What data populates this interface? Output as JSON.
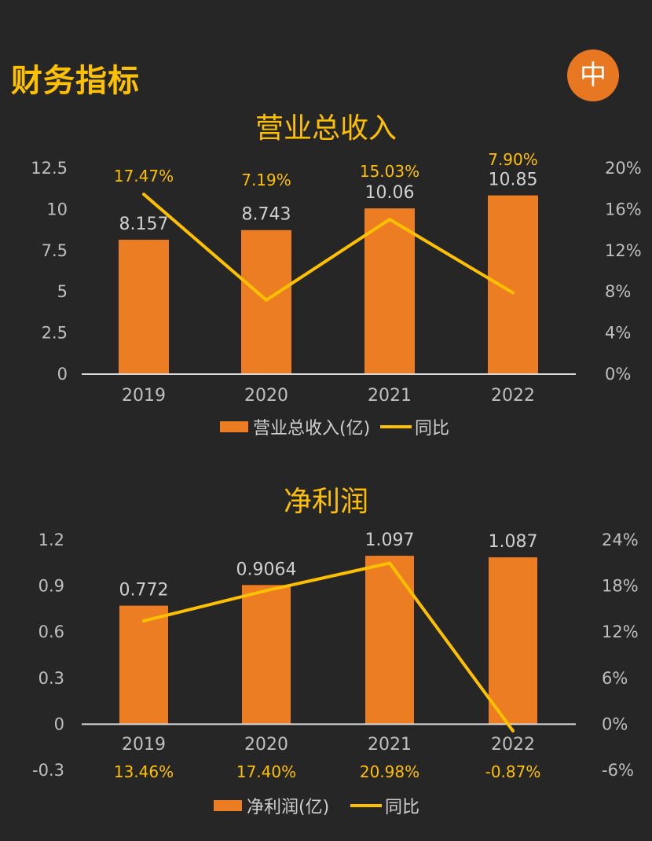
{
  "header": {
    "title": "财务指标",
    "badge": "中"
  },
  "colors": {
    "bar": "#ED7D22",
    "line": "#FFC000",
    "background": "#262626",
    "text": "#bfbfbf"
  },
  "chart_data": [
    {
      "type": "bar",
      "title": "营业总收入",
      "categories": [
        "2019",
        "2020",
        "2021",
        "2022"
      ],
      "series": [
        {
          "name": "营业总收入(亿)",
          "axis": "left",
          "values": [
            8.157,
            8.743,
            10.06,
            10.85
          ],
          "labels": [
            "8.157",
            "8.743",
            "10.06",
            "10.85"
          ]
        },
        {
          "name": "同比",
          "axis": "right",
          "kind": "line",
          "values": [
            17.47,
            7.19,
            15.03,
            7.9
          ],
          "labels": [
            "17.47%",
            "7.19%",
            "15.03%",
            "7.90%"
          ]
        }
      ],
      "ylim": [
        0,
        12.5
      ],
      "yticks": [
        "12.5",
        "10",
        "7.5",
        "5",
        "2.5",
        "0"
      ],
      "ylim_right": [
        0,
        20
      ],
      "yticks_right": [
        "20%",
        "16%",
        "12%",
        "8%",
        "4%",
        "0%"
      ],
      "legend": "bottom"
    },
    {
      "type": "bar",
      "title": "净利润",
      "categories": [
        "2019",
        "2020",
        "2021",
        "2022"
      ],
      "series": [
        {
          "name": "净利润(亿)",
          "axis": "left",
          "values": [
            0.772,
            0.9064,
            1.097,
            1.087
          ],
          "labels": [
            "0.772",
            "0.9064",
            "1.097",
            "1.087"
          ]
        },
        {
          "name": "同比",
          "axis": "right",
          "kind": "line",
          "values": [
            13.46,
            17.4,
            20.98,
            -0.87
          ],
          "labels": [
            "13.46%",
            "17.40%",
            "20.98%",
            "-0.87%"
          ]
        }
      ],
      "ylim": [
        -0.3,
        1.2
      ],
      "yticks": [
        "1.2",
        "0.9",
        "0.6",
        "0.3",
        "0",
        "-0.3"
      ],
      "ylim_right": [
        -6,
        24
      ],
      "yticks_right": [
        "24%",
        "18%",
        "12%",
        "6%",
        "0%",
        "-6%"
      ],
      "legend": "bottom"
    }
  ]
}
